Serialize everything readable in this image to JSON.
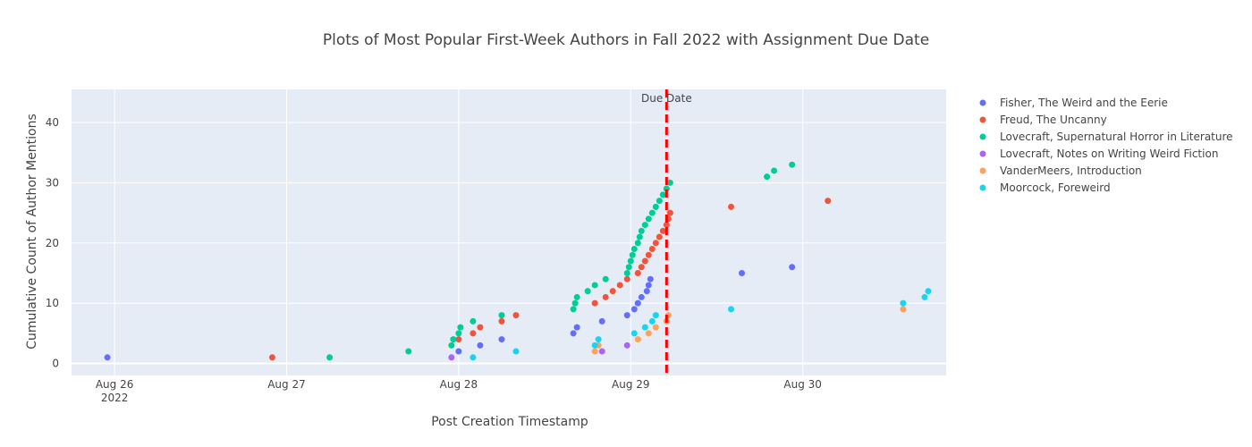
{
  "chart_data": {
    "type": "scatter",
    "title": "Plots of Most Popular First-Week Authors in Fall 2022 with Assignment Due Date",
    "xlabel": "Post Creation Timestamp",
    "ylabel": "Cumulative Count of Author Mentions",
    "x_range": [
      "2022-08-25T18:00",
      "2022-08-30T20:00"
    ],
    "ylim": [
      -2,
      45.5
    ],
    "x_ticks": [
      {
        "value": "2022-08-26T00:00",
        "label": "Aug 26",
        "sublabel": "2022"
      },
      {
        "value": "2022-08-27T00:00",
        "label": "Aug 27",
        "sublabel": ""
      },
      {
        "value": "2022-08-28T00:00",
        "label": "Aug 28",
        "sublabel": ""
      },
      {
        "value": "2022-08-29T00:00",
        "label": "Aug 29",
        "sublabel": ""
      },
      {
        "value": "2022-08-30T00:00",
        "label": "Aug 30",
        "sublabel": ""
      }
    ],
    "y_ticks": [
      0,
      10,
      20,
      30,
      40
    ],
    "grid": true,
    "legend_position": "right",
    "plot_background": "#E5ECF6",
    "due_date": {
      "x": "2022-08-29T05:00",
      "label": "Due Date",
      "color": "#FF0000"
    },
    "series": [
      {
        "name": "Fisher, The Weird and the Eerie",
        "color": "#636EFA",
        "points": [
          [
            "2022-08-25T23:00",
            1
          ],
          [
            "2022-08-28T00:00",
            2
          ],
          [
            "2022-08-28T03:00",
            3
          ],
          [
            "2022-08-28T06:00",
            4
          ],
          [
            "2022-08-28T16:00",
            5
          ],
          [
            "2022-08-28T16:30",
            6
          ],
          [
            "2022-08-28T20:00",
            7
          ],
          [
            "2022-08-28T23:30",
            8
          ],
          [
            "2022-08-29T00:30",
            9
          ],
          [
            "2022-08-29T01:00",
            10
          ],
          [
            "2022-08-29T01:30",
            11
          ],
          [
            "2022-08-29T02:15",
            12
          ],
          [
            "2022-08-29T02:30",
            13
          ],
          [
            "2022-08-29T02:45",
            14
          ],
          [
            "2022-08-29T15:30",
            15
          ],
          [
            "2022-08-29T22:30",
            16
          ]
        ]
      },
      {
        "name": "Freud, The Uncanny",
        "color": "#EF553B",
        "points": [
          [
            "2022-08-26T22:00",
            1
          ],
          [
            "2022-08-28T00:00",
            4
          ],
          [
            "2022-08-28T02:00",
            5
          ],
          [
            "2022-08-28T03:00",
            6
          ],
          [
            "2022-08-28T06:00",
            7
          ],
          [
            "2022-08-28T08:00",
            8
          ],
          [
            "2022-08-28T19:00",
            10
          ],
          [
            "2022-08-28T20:30",
            11
          ],
          [
            "2022-08-28T21:30",
            12
          ],
          [
            "2022-08-28T22:30",
            13
          ],
          [
            "2022-08-28T23:30",
            14
          ],
          [
            "2022-08-29T01:00",
            15
          ],
          [
            "2022-08-29T01:30",
            16
          ],
          [
            "2022-08-29T02:00",
            17
          ],
          [
            "2022-08-29T02:30",
            18
          ],
          [
            "2022-08-29T03:00",
            19
          ],
          [
            "2022-08-29T03:30",
            20
          ],
          [
            "2022-08-29T04:00",
            21
          ],
          [
            "2022-08-29T04:30",
            22
          ],
          [
            "2022-08-29T05:00",
            23
          ],
          [
            "2022-08-29T05:15",
            24
          ],
          [
            "2022-08-29T05:30",
            25
          ],
          [
            "2022-08-29T14:00",
            26
          ],
          [
            "2022-08-30T03:30",
            27
          ]
        ]
      },
      {
        "name": "Lovecraft, Supernatural Horror in Literature",
        "color": "#00CC96",
        "points": [
          [
            "2022-08-27T06:00",
            1
          ],
          [
            "2022-08-27T17:00",
            2
          ],
          [
            "2022-08-27T23:00",
            3
          ],
          [
            "2022-08-27T23:15",
            4
          ],
          [
            "2022-08-28T00:00",
            5
          ],
          [
            "2022-08-28T00:15",
            6
          ],
          [
            "2022-08-28T02:00",
            7
          ],
          [
            "2022-08-28T06:00",
            8
          ],
          [
            "2022-08-28T16:00",
            9
          ],
          [
            "2022-08-28T16:15",
            10
          ],
          [
            "2022-08-28T16:30",
            11
          ],
          [
            "2022-08-28T18:00",
            12
          ],
          [
            "2022-08-28T19:00",
            13
          ],
          [
            "2022-08-28T20:30",
            14
          ],
          [
            "2022-08-28T23:30",
            15
          ],
          [
            "2022-08-28T23:45",
            16
          ],
          [
            "2022-08-29T00:00",
            17
          ],
          [
            "2022-08-29T00:15",
            18
          ],
          [
            "2022-08-29T00:30",
            19
          ],
          [
            "2022-08-29T01:00",
            20
          ],
          [
            "2022-08-29T01:15",
            21
          ],
          [
            "2022-08-29T01:30",
            22
          ],
          [
            "2022-08-29T02:00",
            23
          ],
          [
            "2022-08-29T02:30",
            24
          ],
          [
            "2022-08-29T03:00",
            25
          ],
          [
            "2022-08-29T03:30",
            26
          ],
          [
            "2022-08-29T04:00",
            27
          ],
          [
            "2022-08-29T04:30",
            28
          ],
          [
            "2022-08-29T05:00",
            29
          ],
          [
            "2022-08-29T05:30",
            30
          ],
          [
            "2022-08-29T19:00",
            31
          ],
          [
            "2022-08-29T20:00",
            32
          ],
          [
            "2022-08-29T22:30",
            33
          ]
        ]
      },
      {
        "name": "Lovecraft, Notes on Writing Weird Fiction",
        "color": "#AB63FA",
        "points": [
          [
            "2022-08-27T23:00",
            1
          ],
          [
            "2022-08-28T20:00",
            2
          ],
          [
            "2022-08-28T23:30",
            3
          ]
        ]
      },
      {
        "name": "VanderMeers, Introduction",
        "color": "#FFA15A",
        "points": [
          [
            "2022-08-28T19:00",
            2
          ],
          [
            "2022-08-28T19:30",
            3
          ],
          [
            "2022-08-29T01:00",
            4
          ],
          [
            "2022-08-29T02:30",
            5
          ],
          [
            "2022-08-29T03:30",
            6
          ],
          [
            "2022-08-29T05:00",
            7
          ],
          [
            "2022-08-29T05:15",
            8
          ],
          [
            "2022-08-30T14:00",
            9
          ]
        ]
      },
      {
        "name": "Moorcock, Foreweird",
        "color": "#19D3F3",
        "points": [
          [
            "2022-08-28T02:00",
            1
          ],
          [
            "2022-08-28T08:00",
            2
          ],
          [
            "2022-08-28T19:00",
            3
          ],
          [
            "2022-08-28T19:30",
            4
          ],
          [
            "2022-08-29T00:30",
            5
          ],
          [
            "2022-08-29T02:00",
            6
          ],
          [
            "2022-08-29T03:00",
            7
          ],
          [
            "2022-08-29T03:30",
            8
          ],
          [
            "2022-08-29T14:00",
            9
          ],
          [
            "2022-08-30T14:00",
            10
          ],
          [
            "2022-08-30T17:00",
            11
          ],
          [
            "2022-08-30T17:30",
            12
          ]
        ]
      }
    ]
  }
}
